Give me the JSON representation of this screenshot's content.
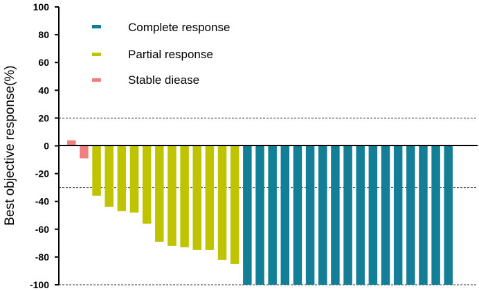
{
  "chart_data": {
    "type": "bar",
    "ylabel": "Best objective response(%)",
    "ylim": [
      -100,
      100
    ],
    "y_ticks": [
      100,
      80,
      60,
      40,
      20,
      0,
      -20,
      -40,
      -60,
      -80,
      -100
    ],
    "reference_lines": [
      20,
      -30,
      -100
    ],
    "legend_position": "top-left",
    "series": [
      {
        "name": "Complete response",
        "color": "#127f97"
      },
      {
        "name": "Partial response",
        "color": "#bfc300"
      },
      {
        "name": "Stable diease",
        "color": "#f07f80"
      }
    ],
    "values": [
      4,
      -9,
      -36,
      -44,
      -47,
      -48,
      -56,
      -69,
      -72,
      -73,
      -75,
      -75,
      -82,
      -85,
      -100,
      -100,
      -100,
      -100,
      -100,
      -100,
      -100,
      -100,
      -100,
      -100,
      -100,
      -100,
      -100,
      -100,
      -100,
      -100,
      -100
    ],
    "groups": [
      2,
      2,
      1,
      1,
      1,
      1,
      1,
      1,
      1,
      1,
      1,
      1,
      1,
      1,
      0,
      0,
      0,
      0,
      0,
      0,
      0,
      0,
      0,
      0,
      0,
      0,
      0,
      0,
      0,
      0,
      0
    ]
  }
}
